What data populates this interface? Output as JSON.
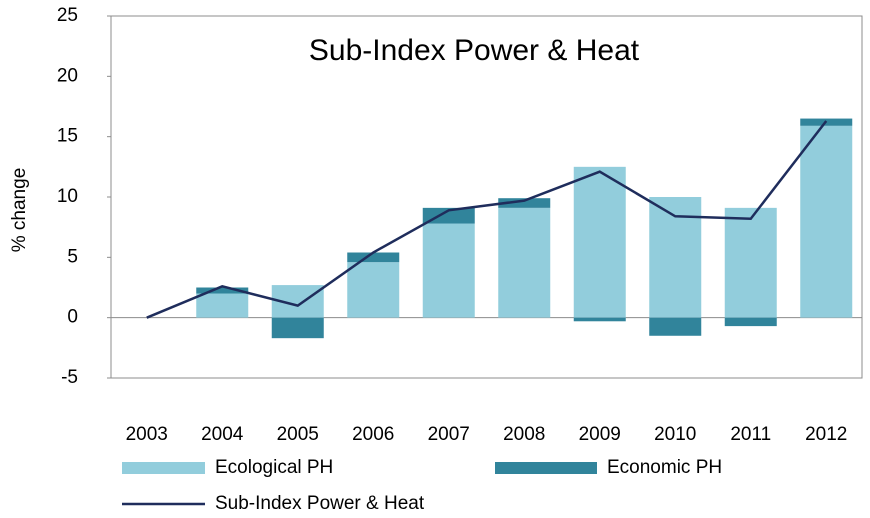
{
  "chart_data": {
    "type": "bar",
    "title": "Sub-Index Power & Heat",
    "y_label": "% change",
    "categories": [
      "2003",
      "2004",
      "2005",
      "2006",
      "2007",
      "2008",
      "2009",
      "2010",
      "2011",
      "2012"
    ],
    "series": [
      {
        "name": "Ecological PH",
        "type": "bar",
        "color": "#92cddc",
        "values": [
          0,
          2.0,
          2.7,
          4.6,
          7.8,
          9.1,
          12.5,
          10.0,
          9.1,
          15.9
        ]
      },
      {
        "name": "Economic PH",
        "type": "bar",
        "color": "#31849b",
        "values": [
          0,
          0.5,
          -1.7,
          0.8,
          1.3,
          0.8,
          -0.3,
          -1.5,
          -0.7,
          0.6
        ]
      },
      {
        "name": "Sub-Index  Power & Heat",
        "type": "line",
        "color": "#1f2d5c",
        "values": [
          0,
          2.6,
          1.0,
          5.4,
          8.9,
          9.7,
          12.1,
          8.4,
          8.2,
          16.3
        ]
      }
    ],
    "ylim": [
      -5,
      25
    ],
    "yticks": [
      -5,
      0,
      5,
      10,
      15,
      20,
      25
    ],
    "grid": false
  }
}
